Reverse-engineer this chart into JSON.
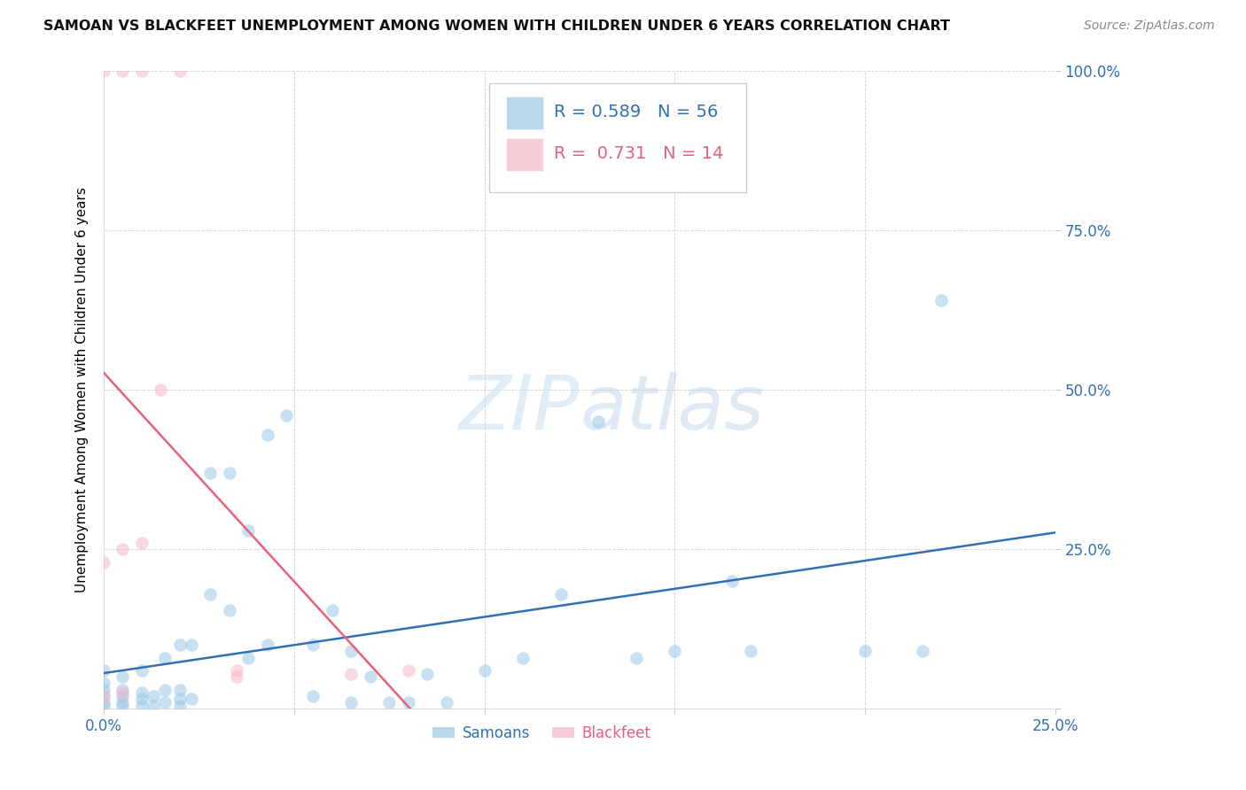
{
  "title": "SAMOAN VS BLACKFEET UNEMPLOYMENT AMONG WOMEN WITH CHILDREN UNDER 6 YEARS CORRELATION CHART",
  "source": "Source: ZipAtlas.com",
  "ylabel": "Unemployment Among Women with Children Under 6 years",
  "xlim": [
    0.0,
    0.25
  ],
  "ylim": [
    0.0,
    1.0
  ],
  "samoans_R": 0.589,
  "samoans_N": 56,
  "blackfeet_R": 0.731,
  "blackfeet_N": 14,
  "samoan_color": "#9ac8e8",
  "blackfeet_color": "#f7b8c8",
  "samoan_line_color": "#3070b3",
  "blackfeet_line_color": "#e8607a",
  "watermark_zip": "ZIP",
  "watermark_atlas": "atlas",
  "samoans_x": [
    0.0,
    0.0,
    0.0,
    0.0,
    0.0,
    0.0,
    0.005,
    0.005,
    0.005,
    0.005,
    0.005,
    0.01,
    0.01,
    0.01,
    0.01,
    0.013,
    0.013,
    0.016,
    0.016,
    0.016,
    0.02,
    0.02,
    0.02,
    0.02,
    0.023,
    0.023,
    0.028,
    0.028,
    0.033,
    0.033,
    0.038,
    0.038,
    0.043,
    0.043,
    0.048,
    0.055,
    0.055,
    0.06,
    0.065,
    0.065,
    0.07,
    0.075,
    0.08,
    0.085,
    0.09,
    0.1,
    0.11,
    0.12,
    0.13,
    0.14,
    0.15,
    0.165,
    0.17,
    0.2,
    0.215,
    0.22
  ],
  "samoans_y": [
    0.005,
    0.01,
    0.02,
    0.03,
    0.04,
    0.06,
    0.005,
    0.01,
    0.02,
    0.03,
    0.05,
    0.005,
    0.015,
    0.025,
    0.06,
    0.005,
    0.02,
    0.01,
    0.03,
    0.08,
    0.005,
    0.015,
    0.03,
    0.1,
    0.015,
    0.1,
    0.18,
    0.37,
    0.155,
    0.37,
    0.08,
    0.28,
    0.1,
    0.43,
    0.46,
    0.02,
    0.1,
    0.155,
    0.01,
    0.09,
    0.05,
    0.01,
    0.01,
    0.055,
    0.01,
    0.06,
    0.08,
    0.18,
    0.45,
    0.08,
    0.09,
    0.2,
    0.09,
    0.09,
    0.09,
    0.64
  ],
  "blackfeet_x": [
    0.0,
    0.0,
    0.0,
    0.005,
    0.005,
    0.005,
    0.01,
    0.01,
    0.015,
    0.02,
    0.035,
    0.035,
    0.065,
    0.08
  ],
  "blackfeet_y": [
    0.02,
    0.23,
    1.0,
    0.025,
    0.25,
    1.0,
    0.26,
    1.0,
    0.5,
    1.0,
    0.05,
    0.06,
    0.055,
    0.06
  ]
}
